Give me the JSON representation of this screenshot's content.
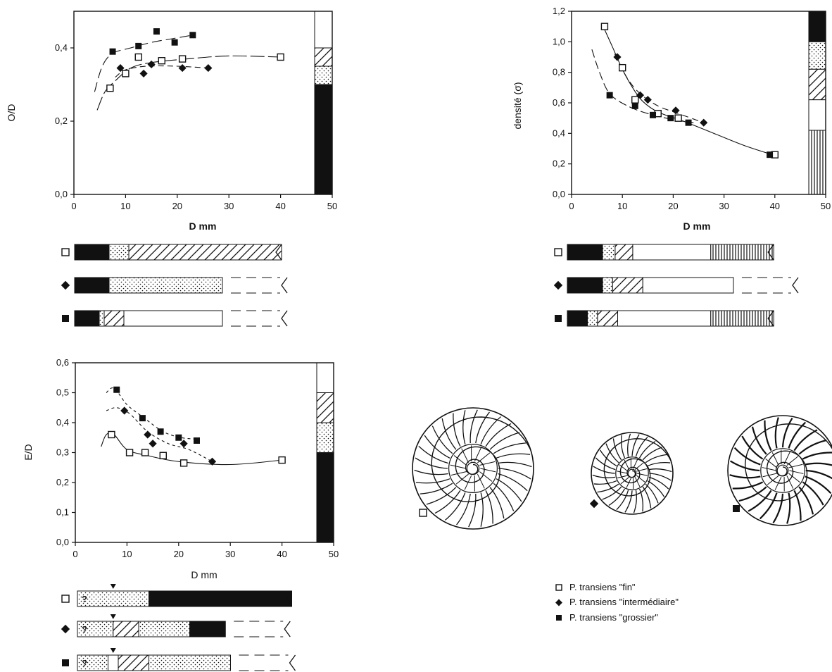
{
  "chart_data": [
    {
      "id": "od",
      "type": "scatter",
      "ylabel": "O/D",
      "xlabel": "D  mm",
      "xlim": [
        0,
        50
      ],
      "ylim": [
        0,
        0.5
      ],
      "xticks": [
        "0",
        "10",
        "20",
        "30",
        "40",
        "50"
      ],
      "yticks": [
        "0,0",
        "0,2",
        "0,4"
      ],
      "series": [
        {
          "key": "fin",
          "marker": "open-square",
          "points": [
            [
              7,
              0.29
            ],
            [
              10,
              0.33
            ],
            [
              12.5,
              0.375
            ],
            [
              17,
              0.365
            ],
            [
              21,
              0.37
            ],
            [
              40,
              0.375
            ]
          ]
        },
        {
          "key": "intermediaire",
          "marker": "diamond",
          "points": [
            [
              9,
              0.345
            ],
            [
              13.5,
              0.33
            ],
            [
              15,
              0.355
            ],
            [
              21,
              0.345
            ],
            [
              26,
              0.345
            ]
          ]
        },
        {
          "key": "grossier",
          "marker": "filled-square",
          "points": [
            [
              7.5,
              0.39
            ],
            [
              12.5,
              0.405
            ],
            [
              16,
              0.445
            ],
            [
              19.5,
              0.415
            ],
            [
              23,
              0.435
            ]
          ]
        }
      ],
      "curves": [
        {
          "key": "fin",
          "points": [
            [
              4.5,
              0.23
            ],
            [
              6,
              0.28
            ],
            [
              8,
              0.31
            ],
            [
              11,
              0.345
            ],
            [
              15,
              0.36
            ],
            [
              22,
              0.37
            ],
            [
              30,
              0.378
            ],
            [
              40,
              0.375
            ]
          ]
        },
        {
          "key": "intermediaire",
          "points": [
            [
              8,
              0.32
            ],
            [
              10,
              0.34
            ],
            [
              14,
              0.35
            ],
            [
              20,
              0.35
            ],
            [
              26,
              0.345
            ]
          ]
        },
        {
          "key": "grossier",
          "points": [
            [
              4,
              0.28
            ],
            [
              5.5,
              0.35
            ],
            [
              7.5,
              0.385
            ],
            [
              11,
              0.4
            ],
            [
              15,
              0.415
            ],
            [
              19,
              0.425
            ],
            [
              23,
              0.435
            ]
          ]
        }
      ],
      "side_bar": [
        "blank",
        "hatch",
        "dots",
        "black"
      ],
      "side_bar_breaks": [
        0.5,
        0.4,
        0.35,
        0.3,
        0
      ]
    },
    {
      "id": "densite",
      "type": "scatter",
      "ylabel": "densité (σ)",
      "xlabel": "D  mm",
      "xlim": [
        0,
        50
      ],
      "ylim": [
        0,
        1.2
      ],
      "xticks": [
        "0",
        "10",
        "20",
        "30",
        "40",
        "50"
      ],
      "yticks": [
        "0,0",
        "0,2",
        "0,4",
        "0,6",
        "0,8",
        "1,0",
        "1,2"
      ],
      "series": [
        {
          "key": "fin",
          "marker": "open-square",
          "points": [
            [
              6.5,
              1.1
            ],
            [
              10,
              0.83
            ],
            [
              12.5,
              0.62
            ],
            [
              17,
              0.53
            ],
            [
              21,
              0.5
            ],
            [
              40,
              0.26
            ]
          ]
        },
        {
          "key": "intermediaire",
          "marker": "diamond",
          "points": [
            [
              9,
              0.9
            ],
            [
              13.5,
              0.65
            ],
            [
              15,
              0.62
            ],
            [
              20.5,
              0.55
            ],
            [
              26,
              0.47
            ]
          ]
        },
        {
          "key": "grossier",
          "marker": "filled-square",
          "points": [
            [
              7.5,
              0.65
            ],
            [
              12.5,
              0.58
            ],
            [
              16,
              0.52
            ],
            [
              19.5,
              0.5
            ],
            [
              23,
              0.47
            ],
            [
              39,
              0.26
            ]
          ]
        }
      ],
      "curves": [
        {
          "key": "fin",
          "points": [
            [
              6.5,
              1.08
            ],
            [
              8,
              0.97
            ],
            [
              10,
              0.82
            ],
            [
              12,
              0.7
            ],
            [
              14,
              0.61
            ],
            [
              17,
              0.54
            ],
            [
              22,
              0.48
            ],
            [
              28,
              0.4
            ],
            [
              34,
              0.32
            ],
            [
              39.5,
              0.26
            ]
          ]
        },
        {
          "key": "intermediaire",
          "points": [
            [
              8.5,
              0.92
            ],
            [
              11,
              0.76
            ],
            [
              13.5,
              0.66
            ],
            [
              17,
              0.58
            ],
            [
              21,
              0.53
            ],
            [
              26,
              0.47
            ]
          ]
        },
        {
          "key": "grossier",
          "points": [
            [
              4,
              0.95
            ],
            [
              5.5,
              0.8
            ],
            [
              7.5,
              0.66
            ],
            [
              11,
              0.58
            ],
            [
              15,
              0.53
            ],
            [
              20,
              0.49
            ],
            [
              24,
              0.47
            ]
          ]
        }
      ],
      "side_bar": [
        "black",
        "dots",
        "hatch",
        "blank",
        "vlines"
      ],
      "side_bar_breaks": [
        1.2,
        1.0,
        0.82,
        0.62,
        0.42,
        0
      ]
    },
    {
      "id": "ed",
      "type": "scatter",
      "ylabel": "E/D",
      "xlabel": "D mm",
      "xlim": [
        0,
        50
      ],
      "ylim": [
        0,
        0.6
      ],
      "xticks": [
        "0",
        "10",
        "20",
        "30",
        "40",
        "50"
      ],
      "yticks": [
        "0,0",
        "0,1",
        "0,2",
        "0,3",
        "0,4",
        "0,5",
        "0,6"
      ],
      "series": [
        {
          "key": "fin",
          "marker": "open-square",
          "points": [
            [
              7,
              0.36
            ],
            [
              10.5,
              0.3
            ],
            [
              13.5,
              0.3
            ],
            [
              17,
              0.29
            ],
            [
              21,
              0.265
            ],
            [
              40,
              0.275
            ]
          ]
        },
        {
          "key": "intermediaire",
          "marker": "diamond",
          "points": [
            [
              9.5,
              0.44
            ],
            [
              14,
              0.36
            ],
            [
              15,
              0.33
            ],
            [
              21,
              0.33
            ],
            [
              26.5,
              0.27
            ]
          ]
        },
        {
          "key": "grossier",
          "marker": "filled-square",
          "points": [
            [
              8,
              0.51
            ],
            [
              13,
              0.415
            ],
            [
              16.5,
              0.37
            ],
            [
              20,
              0.35
            ],
            [
              23.5,
              0.34
            ]
          ]
        }
      ],
      "curves": [
        {
          "key": "fin",
          "points": [
            [
              5,
              0.32
            ],
            [
              6,
              0.36
            ],
            [
              7.5,
              0.36
            ],
            [
              10,
              0.31
            ],
            [
              14,
              0.29
            ],
            [
              20,
              0.27
            ],
            [
              30,
              0.26
            ],
            [
              40,
              0.275
            ]
          ]
        },
        {
          "key": "intermediaire",
          "points": [
            [
              6,
              0.44
            ],
            [
              8,
              0.45
            ],
            [
              10.5,
              0.43
            ],
            [
              14,
              0.37
            ],
            [
              18,
              0.33
            ],
            [
              22,
              0.31
            ],
            [
              26.5,
              0.27
            ]
          ]
        },
        {
          "key": "grossier",
          "points": [
            [
              6,
              0.5
            ],
            [
              7.5,
              0.515
            ],
            [
              10,
              0.46
            ],
            [
              13,
              0.42
            ],
            [
              17,
              0.37
            ],
            [
              20.5,
              0.35
            ],
            [
              23.5,
              0.345
            ]
          ]
        }
      ],
      "side_bar": [
        "blank",
        "hatch",
        "dots",
        "black"
      ],
      "side_bar_breaks": [
        0.6,
        0.5,
        0.4,
        0.3,
        0
      ]
    }
  ],
  "range_bars": {
    "od": [
      {
        "key": "fin",
        "dashed": false,
        "segments": [
          [
            "black",
            0,
            7
          ],
          [
            "dots",
            7,
            11
          ],
          [
            "hatch",
            11,
            42
          ]
        ]
      },
      {
        "key": "intermediaire",
        "dashed": true,
        "segments": [
          [
            "black",
            0,
            7
          ],
          [
            "dots",
            7,
            30
          ]
        ]
      },
      {
        "key": "grossier",
        "dashed": true,
        "segments": [
          [
            "black",
            0,
            5
          ],
          [
            "dots",
            5,
            6
          ],
          [
            "hatch",
            6,
            10
          ],
          [
            "blank",
            10,
            30
          ]
        ]
      }
    ],
    "densite": [
      {
        "key": "fin",
        "dashed": false,
        "segments": [
          [
            "black",
            0,
            7
          ],
          [
            "dots",
            7,
            9.5
          ],
          [
            "hatch",
            9.5,
            13
          ],
          [
            "blank",
            13,
            28.5
          ],
          [
            "vlines",
            28.5,
            41
          ]
        ]
      },
      {
        "key": "intermediaire",
        "dashed": true,
        "segments": [
          [
            "black",
            0,
            7
          ],
          [
            "dots",
            7,
            9
          ],
          [
            "hatch",
            9,
            15
          ],
          [
            "blank",
            15,
            33
          ]
        ]
      },
      {
        "key": "grossier",
        "dashed": false,
        "segments": [
          [
            "black",
            0,
            4
          ],
          [
            "dots",
            4,
            6
          ],
          [
            "hatch",
            6,
            10
          ],
          [
            "blank",
            10,
            28.5
          ],
          [
            "vlines",
            28.5,
            41
          ]
        ]
      }
    ],
    "ed": [
      {
        "key": "fin",
        "dashed": false,
        "question": "?",
        "arrow_at": 7,
        "segments": [
          [
            "dots",
            0,
            14
          ],
          [
            "black",
            14,
            42
          ]
        ]
      },
      {
        "key": "intermediaire",
        "dashed": true,
        "question": "?",
        "arrow_at": 7,
        "segments": [
          [
            "dots",
            0,
            7
          ],
          [
            "hatch",
            7,
            12
          ],
          [
            "dots",
            12,
            22
          ],
          [
            "black",
            22,
            29
          ]
        ]
      },
      {
        "key": "grossier",
        "dashed": true,
        "question": "?",
        "arrow_at": 7,
        "segments": [
          [
            "dots",
            0,
            6
          ],
          [
            "blank",
            6,
            8
          ],
          [
            "hatch",
            8,
            14
          ],
          [
            "dots",
            14,
            30
          ]
        ]
      }
    ]
  },
  "legend": {
    "items": [
      {
        "key": "fin",
        "marker": "open-square",
        "label": "P. transiens \"fin\""
      },
      {
        "key": "intermediaire",
        "marker": "diamond",
        "label": "P. transiens \"intermédiaire\""
      },
      {
        "key": "grossier",
        "marker": "filled-square",
        "label": "P. transiens \"grossier\""
      }
    ]
  },
  "shells": [
    {
      "key": "fin",
      "marker": "open-square",
      "ribs": 30
    },
    {
      "key": "intermediaire",
      "marker": "diamond",
      "ribs": 28
    },
    {
      "key": "grossier",
      "marker": "filled-square",
      "ribs": 24
    }
  ]
}
